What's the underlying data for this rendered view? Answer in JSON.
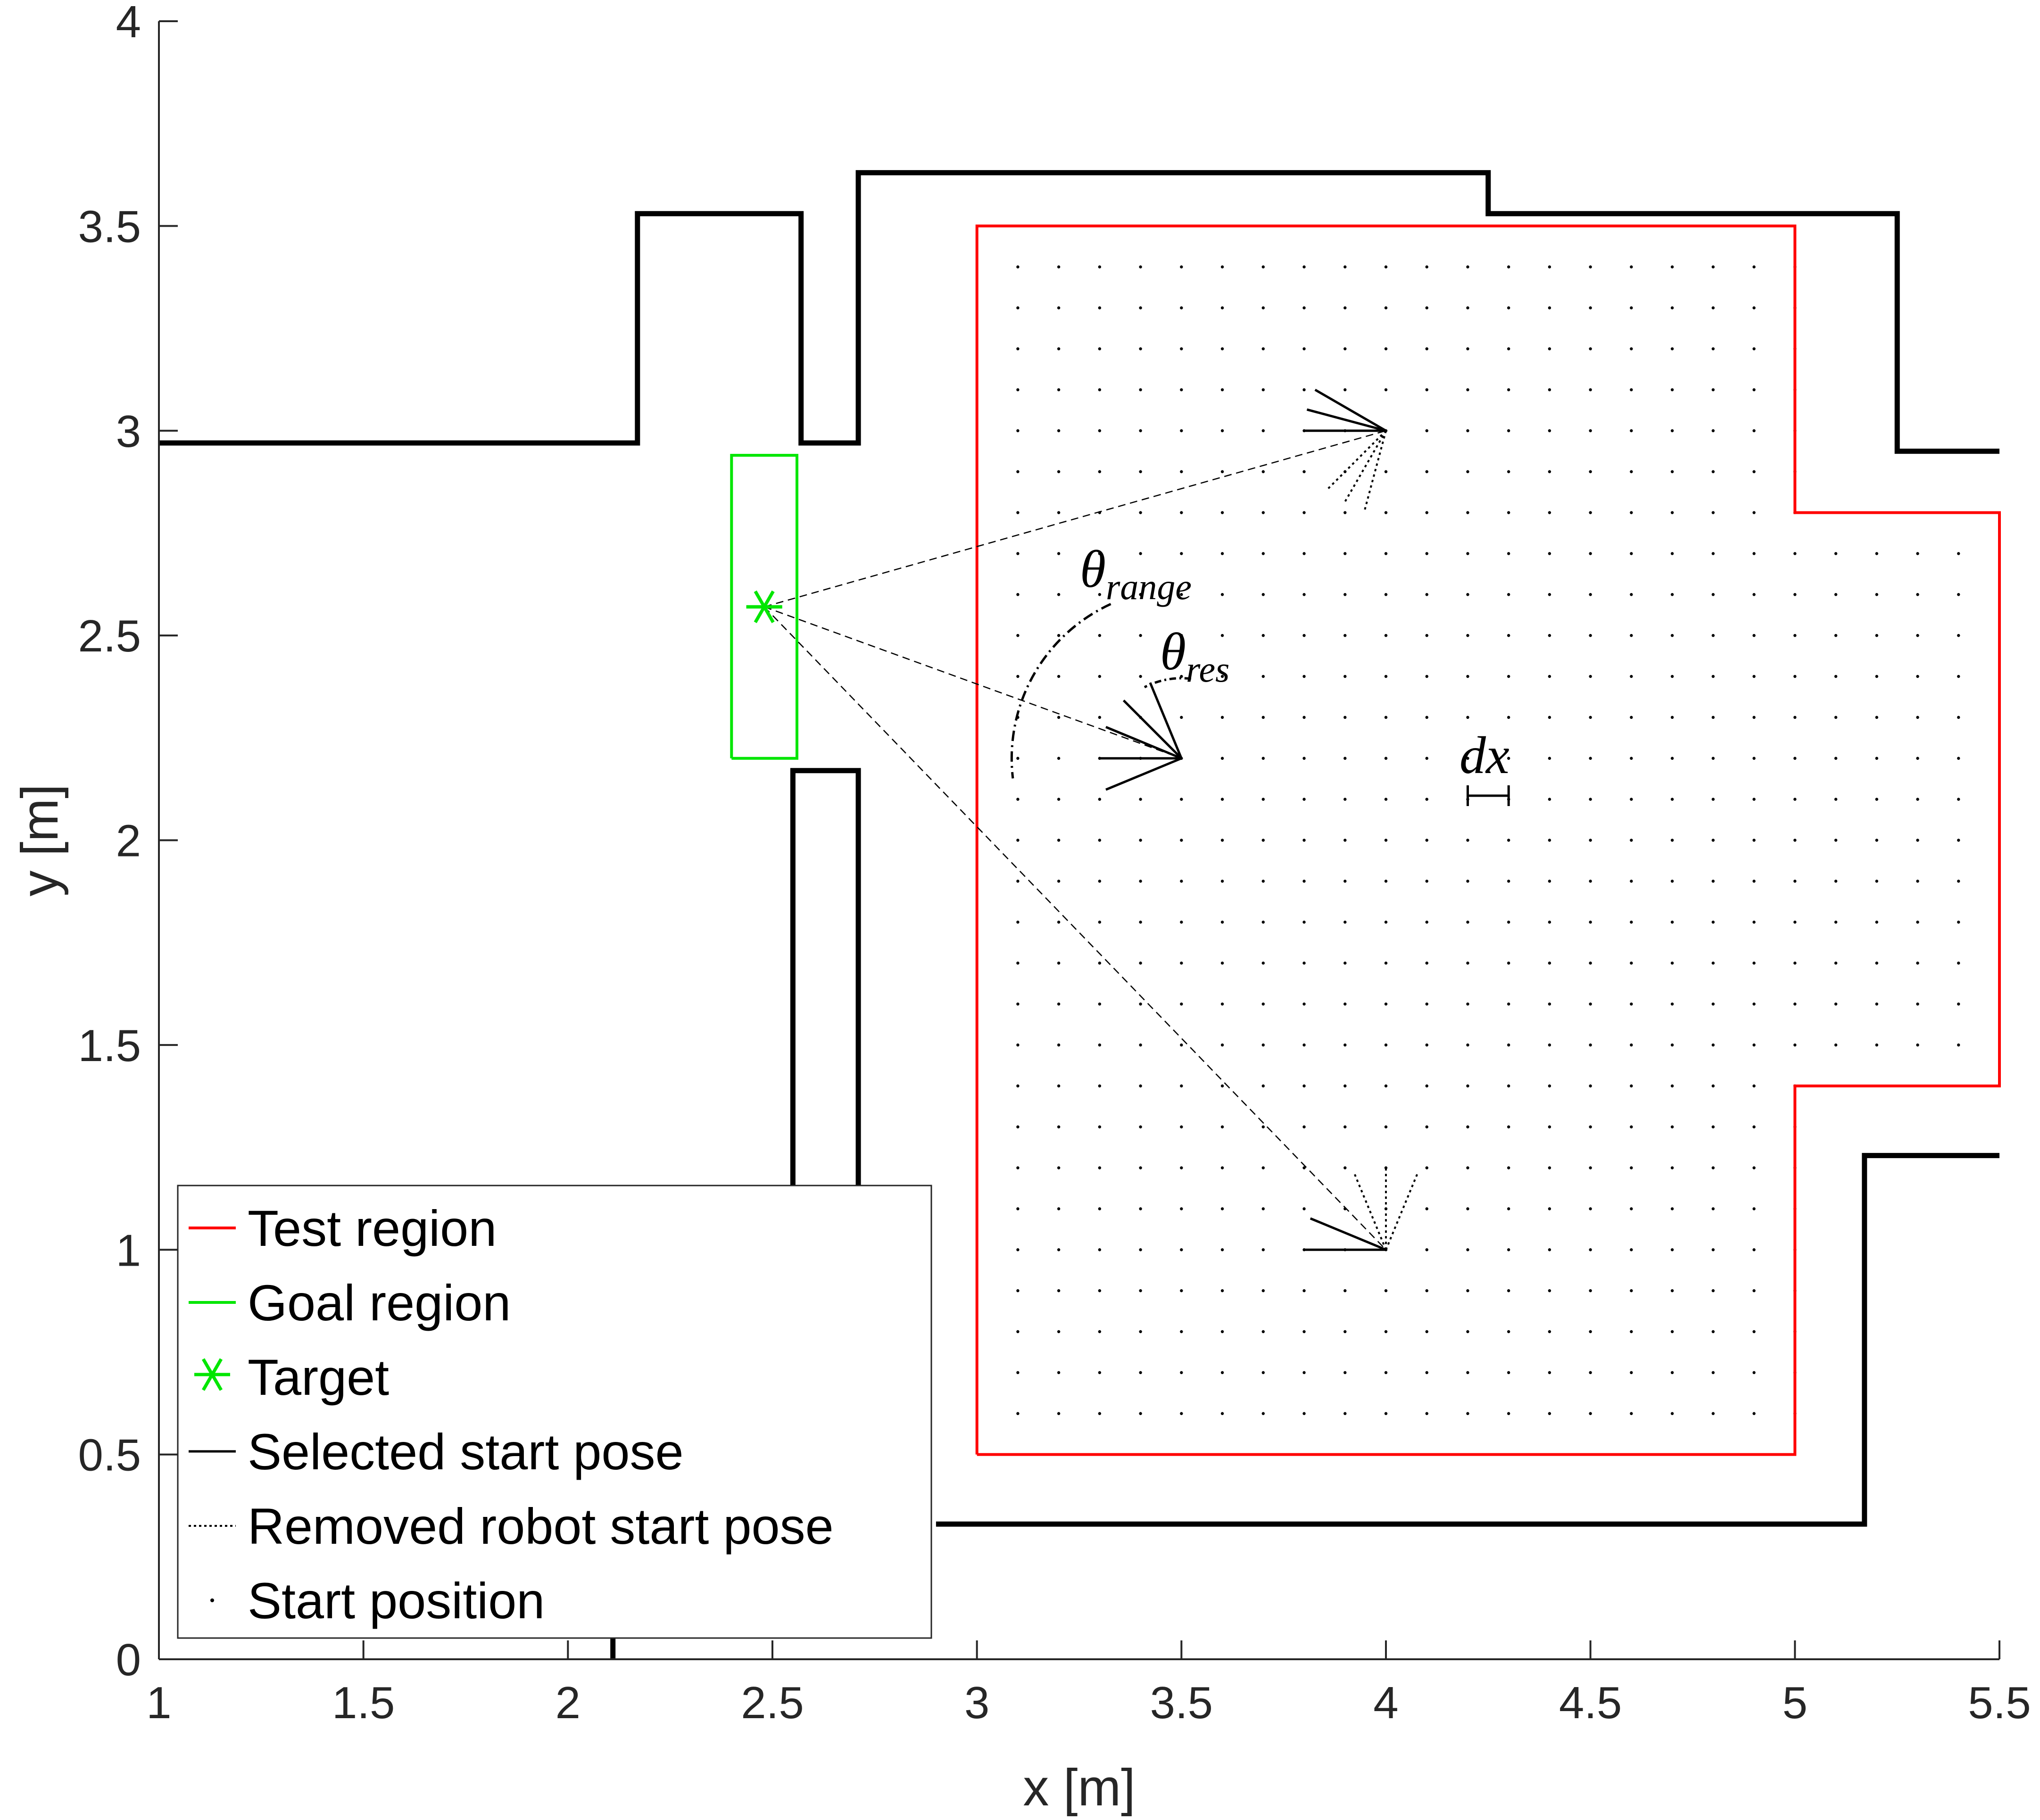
{
  "chart_data": {
    "type": "line",
    "xlabel": "x [m]",
    "ylabel": "y [m]",
    "xlim": [
      1,
      5.5
    ],
    "ylim": [
      0,
      4
    ],
    "xticks": [
      "1",
      "1.5",
      "2",
      "2.5",
      "3",
      "3.5",
      "4",
      "4.5",
      "5",
      "5.5"
    ],
    "yticks": [
      "0",
      "0.5",
      "1",
      "1.5",
      "2",
      "2.5",
      "3",
      "3.5",
      "4"
    ],
    "grid": false,
    "legend_position": "bottom-left",
    "colors": {
      "test_region": "#ff0000",
      "goal_region": "#00e600",
      "target": "#00e600",
      "walls": "#000000"
    },
    "walls": [
      [
        [
          1.0,
          2.97
        ],
        [
          2.17,
          2.97
        ],
        [
          2.17,
          3.53
        ],
        [
          2.57,
          3.53
        ],
        [
          2.57,
          2.97
        ],
        [
          2.71,
          2.97
        ],
        [
          2.71,
          3.63
        ],
        [
          4.25,
          3.63
        ],
        [
          4.25,
          3.53
        ],
        [
          5.25,
          3.53
        ],
        [
          5.25,
          2.95
        ],
        [
          5.5,
          2.95
        ]
      ],
      [
        [
          2.55,
          1.15
        ],
        [
          2.55,
          2.17
        ],
        [
          2.71,
          2.17
        ],
        [
          2.71,
          1.15
        ]
      ],
      [
        [
          2.9,
          0.33
        ],
        [
          5.17,
          0.33
        ],
        [
          5.17,
          1.23
        ],
        [
          5.5,
          1.23
        ]
      ],
      [
        [
          2.11,
          0.0
        ],
        [
          2.11,
          0.06
        ]
      ]
    ],
    "test_region": [
      [
        3.0,
        0.5
      ],
      [
        5.0,
        0.5
      ],
      [
        5.0,
        1.4
      ],
      [
        5.5,
        1.4
      ],
      [
        5.5,
        2.8
      ],
      [
        5.0,
        2.8
      ],
      [
        5.0,
        3.5
      ],
      [
        3.0,
        3.5
      ],
      [
        3.0,
        0.5
      ]
    ],
    "goal_region": [
      [
        2.4,
        2.2
      ],
      [
        2.56,
        2.2
      ],
      [
        2.56,
        2.94
      ],
      [
        2.4,
        2.94
      ],
      [
        2.4,
        2.2
      ]
    ],
    "target": [
      2.48,
      2.57
    ],
    "start_positions_grid": {
      "x_start": 3.1,
      "x_end": 5.4,
      "x_step": 0.1,
      "y_start": 0.6,
      "y_end": 3.4,
      "y_step": 0.1
    },
    "start_poses": [
      {
        "position": [
          4.0,
          3.0
        ],
        "selected_angles_deg": [
          0,
          15,
          30
        ],
        "removed_angles_deg": [
          -45,
          -60,
          -75
        ]
      },
      {
        "position": [
          3.5,
          2.2
        ],
        "selected_angles_deg": [
          0,
          22.5,
          45,
          67.5,
          -22.5
        ]
      },
      {
        "position": [
          4.0,
          1.0
        ],
        "selected_angles_deg": [
          0,
          22.5
        ],
        "removed_angles_deg": [
          67.5,
          90,
          112.5
        ]
      }
    ],
    "annotations": {
      "theta_range": {
        "base": "θ",
        "sub": "range"
      },
      "theta_res": {
        "base": "θ",
        "sub": "res"
      },
      "dx": "dx"
    },
    "legend": [
      {
        "key": "test",
        "label": "Test region",
        "style": "red-line"
      },
      {
        "key": "goal",
        "label": "Goal region",
        "style": "green-line"
      },
      {
        "key": "target",
        "label": "Target",
        "style": "green-asterisk"
      },
      {
        "key": "selected",
        "label": "Selected start pose",
        "style": "black-line"
      },
      {
        "key": "removed",
        "label": "Removed robot start pose",
        "style": "black-dotted"
      },
      {
        "key": "startpos",
        "label": "Start position",
        "style": "black-dot"
      }
    ]
  }
}
